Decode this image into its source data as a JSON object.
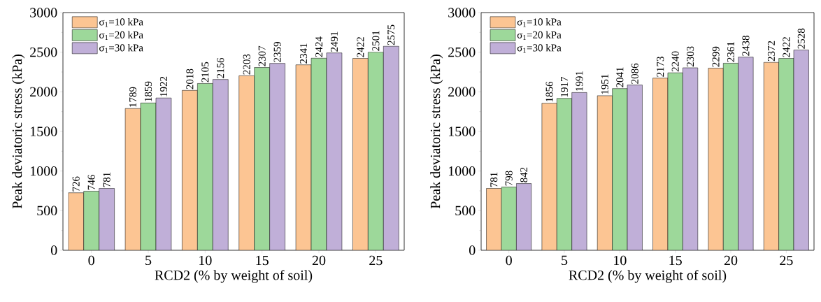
{
  "chart_data": [
    {
      "type": "bar",
      "categories": [
        "0",
        "5",
        "10",
        "15",
        "20",
        "25"
      ],
      "xlabel": "RCD2 (% by weight of soil)",
      "ylabel": "Peak deviatoric stress (kPa)",
      "ylim": [
        0,
        3000
      ],
      "yticks": [
        0,
        500,
        1000,
        1500,
        2000,
        2500,
        3000
      ],
      "data_labels": true,
      "legend": "top left",
      "series": [
        {
          "name": "σ$_{1}$=10 kPa",
          "color": "#fcc593",
          "values": [
            726,
            1789,
            2018,
            2203,
            2341,
            2422
          ]
        },
        {
          "name": "σ$_{1}$=20 kPa",
          "color": "#9dd89a",
          "values": [
            746,
            1859,
            2105,
            2307,
            2424,
            2501
          ]
        },
        {
          "name": "σ$_{1}$=30 kPa",
          "color": "#c0afd8",
          "values": [
            781,
            1922,
            2156,
            2359,
            2491,
            2575
          ]
        }
      ]
    },
    {
      "type": "bar",
      "categories": [
        "0",
        "5",
        "10",
        "15",
        "20",
        "25"
      ],
      "xlabel": "RCD2 (% by weight of soil)",
      "ylabel": "Peak deviatoric stress (kPa)",
      "ylim": [
        0,
        3000
      ],
      "yticks": [
        0,
        500,
        1000,
        1500,
        2000,
        2500,
        3000
      ],
      "data_labels": true,
      "legend": "top left",
      "series": [
        {
          "name": "σ$_{1}$=10 kPa",
          "color": "#fcc593",
          "values": [
            781,
            1856,
            1951,
            2173,
            2299,
            2372
          ]
        },
        {
          "name": "σ$_{1}$=20 kPa",
          "color": "#9dd89a",
          "values": [
            798,
            1917,
            2041,
            2240,
            2361,
            2422
          ]
        },
        {
          "name": "σ$_{1}$=30 kPa",
          "color": "#c0afd8",
          "values": [
            842,
            1991,
            2086,
            2303,
            2438,
            2528
          ]
        }
      ]
    }
  ]
}
